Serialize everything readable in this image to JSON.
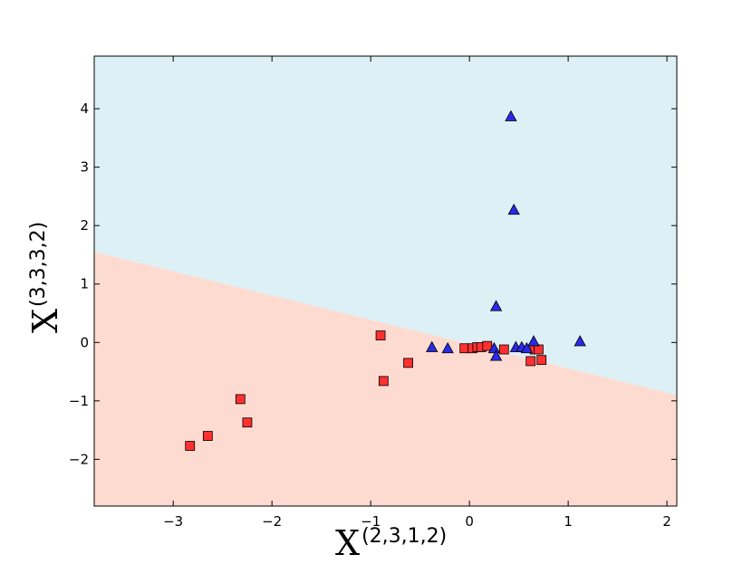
{
  "chart_data": {
    "type": "scatter",
    "xlabel": {
      "base": "X",
      "superscript": "(2,3,1,2)"
    },
    "ylabel": {
      "base": "X",
      "superscript": "(3,3,3,2)"
    },
    "xlim": [
      -3.8,
      2.1
    ],
    "ylim": [
      -2.8,
      4.9
    ],
    "x_ticks": [
      -3,
      -2,
      -1,
      0,
      1,
      2
    ],
    "y_ticks": [
      -2,
      -1,
      0,
      1,
      2,
      3,
      4
    ],
    "x_tick_labels": [
      "−3",
      "−2",
      "−1",
      "0",
      "1",
      "2"
    ],
    "y_tick_labels": [
      "−2",
      "−1",
      "0",
      "1",
      "2",
      "3",
      "4"
    ],
    "grid": false,
    "decision_boundary": {
      "points": [
        [
          -3.8,
          1.55
        ],
        [
          2.1,
          -0.9
        ]
      ],
      "region_above_color": "#dcf0f6",
      "region_below_color": "#fedbd0"
    },
    "series": [
      {
        "marker": "square",
        "color": "#ff3030",
        "points": [
          [
            -2.83,
            -1.77
          ],
          [
            -2.65,
            -1.6
          ],
          [
            -2.32,
            -0.97
          ],
          [
            -2.25,
            -1.37
          ],
          [
            -0.9,
            0.12
          ],
          [
            -0.87,
            -0.66
          ],
          [
            -0.62,
            -0.35
          ],
          [
            -0.05,
            -0.1
          ],
          [
            0.03,
            -0.1
          ],
          [
            0.08,
            -0.08
          ],
          [
            0.12,
            -0.08
          ],
          [
            0.18,
            -0.06
          ],
          [
            0.35,
            -0.12
          ],
          [
            0.62,
            -0.32
          ],
          [
            0.66,
            -0.12
          ],
          [
            0.7,
            -0.12
          ],
          [
            0.73,
            -0.3
          ]
        ]
      },
      {
        "marker": "triangle",
        "color": "#2a2ae6",
        "points": [
          [
            -0.38,
            -0.08
          ],
          [
            -0.22,
            -0.1
          ],
          [
            0.25,
            -0.1
          ],
          [
            0.27,
            0.62
          ],
          [
            0.27,
            -0.23
          ],
          [
            0.42,
            3.87
          ],
          [
            0.45,
            2.27
          ],
          [
            0.47,
            -0.08
          ],
          [
            0.53,
            -0.08
          ],
          [
            0.58,
            -0.1
          ],
          [
            0.65,
            0.02
          ],
          [
            1.12,
            0.02
          ]
        ]
      }
    ]
  }
}
